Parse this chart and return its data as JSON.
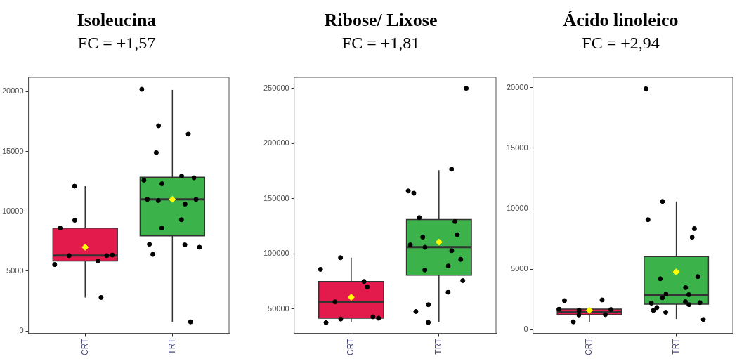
{
  "chart_data": [
    {
      "type": "box",
      "title": "Isoleucina",
      "subtitle": "FC = +1,57",
      "categories": [
        "CRT",
        "TRT"
      ],
      "colors": [
        "#e31b4c",
        "#3bb24a"
      ],
      "ylim": [
        -200,
        21200
      ],
      "yticks": [
        0,
        5000,
        10000,
        15000,
        20000
      ],
      "grid": false,
      "legend": false,
      "marker": "circle",
      "boxes": [
        {
          "low": 2800,
          "q1": 5850,
          "median": 6300,
          "q3": 8600,
          "high": 12100,
          "mean": 7000
        },
        {
          "low": 760,
          "q1": 7950,
          "median": 11000,
          "q3": 12850,
          "high": 20150,
          "mean": 11000
        }
      ],
      "series": [
        {
          "type": "scatter",
          "color": "#000000",
          "x": [
            "CRT",
            "CRT",
            "CRT",
            "CRT",
            "CRT",
            "CRT",
            "CRT",
            "CRT",
            "CRT"
          ],
          "values": [
            5550,
            2800,
            6300,
            6300,
            9250,
            8600,
            5850,
            12100,
            6350
          ]
        },
        {
          "type": "scatter",
          "color": "#000000",
          "x": [
            "TRT",
            "TRT",
            "TRT",
            "TRT",
            "TRT",
            "TRT",
            "TRT",
            "TRT",
            "TRT",
            "TRT",
            "TRT",
            "TRT",
            "TRT",
            "TRT",
            "TRT",
            "TRT",
            "TRT",
            "TRT",
            "TRT"
          ],
          "values": [
            20200,
            16450,
            14900,
            12800,
            12300,
            11000,
            10600,
            8600,
            7000,
            7200,
            6400,
            760,
            17150,
            12600,
            12950,
            10900,
            11000,
            9300,
            7250
          ]
        }
      ]
    },
    {
      "type": "box",
      "title": "Ribose/ Lixose",
      "subtitle": "FC = +1,81",
      "categories": [
        "CRT",
        "TRT"
      ],
      "colors": [
        "#e31b4c",
        "#3bb24a"
      ],
      "ylim": [
        28000,
        260000
      ],
      "yticks": [
        50000,
        100000,
        150000,
        200000,
        250000
      ],
      "grid": false,
      "legend": false,
      "marker": "circle",
      "boxes": [
        {
          "low": 37900,
          "q1": 41700,
          "median": 56300,
          "q3": 75000,
          "high": 96600,
          "mean": 60750
        },
        {
          "low": 37900,
          "q1": 80700,
          "median": 106200,
          "q3": 131100,
          "high": 175900,
          "mean": 110700
        }
      ],
      "series": [
        {
          "type": "scatter",
          "color": "#000000",
          "x": [
            "CRT",
            "CRT",
            "CRT",
            "CRT",
            "CRT",
            "CRT",
            "CRT",
            "CRT",
            "CRT"
          ],
          "values": [
            86000,
            70000,
            56500,
            43000,
            41000,
            37700,
            75000,
            96600,
            41700
          ]
        },
        {
          "type": "scatter",
          "color": "#000000",
          "x": [
            "TRT",
            "TRT",
            "TRT",
            "TRT",
            "TRT",
            "TRT",
            "TRT",
            "TRT",
            "TRT",
            "TRT",
            "TRT",
            "TRT",
            "TRT",
            "TRT",
            "TRT",
            "TRT",
            "TRT",
            "TRT",
            "TRT"
          ],
          "values": [
            157000,
            129300,
            115200,
            95000,
            54000,
            155000,
            102900,
            37900,
            250000,
            176800,
            132900,
            117400,
            106000,
            108200,
            89000,
            85400,
            75750,
            65200,
            47800
          ]
        }
      ]
    },
    {
      "type": "box",
      "title": "Ácido linoleico",
      "subtitle": "FC = +2,94",
      "categories": [
        "CRT",
        "TRT"
      ],
      "colors": [
        "#e31b4c",
        "#3bb24a"
      ],
      "ylim": [
        -300,
        20850
      ],
      "yticks": [
        0,
        5000,
        10000,
        15000,
        20000
      ],
      "grid": false,
      "legend": false,
      "marker": "circle",
      "boxes": [
        {
          "low": 650,
          "q1": 1240,
          "median": 1440,
          "q3": 1700,
          "high": 1700,
          "mean": 1600
        },
        {
          "low": 890,
          "q1": 2110,
          "median": 2870,
          "q3": 6040,
          "high": 10590,
          "mean": 4780
        }
      ],
      "series": [
        {
          "type": "scatter",
          "color": "#000000",
          "x": [
            "CRT",
            "CRT",
            "CRT",
            "CRT",
            "CRT",
            "CRT",
            "CRT",
            "CRT"
          ],
          "values": [
            1700,
            1250,
            650,
            1670,
            1600,
            2400,
            2460,
            1220
          ]
        },
        {
          "type": "scatter",
          "color": "#000000",
          "x": [
            "TRT",
            "TRT",
            "TRT",
            "TRT",
            "TRT",
            "TRT",
            "TRT",
            "TRT",
            "TRT",
            "TRT",
            "TRT",
            "TRT",
            "TRT",
            "TRT",
            "TRT",
            "TRT",
            "TRT",
            "TRT",
            "TRT"
          ],
          "values": [
            19900,
            7640,
            4210,
            4390,
            2950,
            2200,
            2070,
            1440,
            850,
            2900,
            1830,
            8350,
            10600,
            9090,
            3480,
            2640,
            2240,
            2320,
            1600
          ]
        }
      ]
    }
  ]
}
